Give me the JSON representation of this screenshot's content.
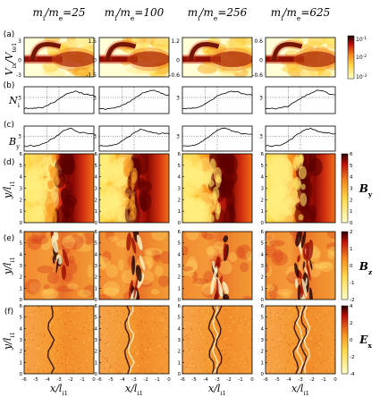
{
  "columns": [
    {
      "prefix": "m",
      "sub1": "i",
      "sep": "/m",
      "sub2": "e",
      "value": "=25"
    },
    {
      "prefix": "m",
      "sub1": "i",
      "sep": "/m",
      "sub2": "e",
      "value": "=100"
    },
    {
      "prefix": "m",
      "sub1": "i",
      "sep": "/m",
      "sub2": "e",
      "value": "=256"
    },
    {
      "prefix": "m",
      "sub1": "i",
      "sep": "/m",
      "sub2": "e",
      "value": "=625"
    }
  ],
  "row_labels": {
    "a": "(a)",
    "b": "(b)",
    "c": "(c)",
    "d": "(d)",
    "e": "(e)",
    "f": "(f)"
  },
  "axis": {
    "a_ylabel_main": "V",
    "a_ylabel_sub": "ix",
    "a_ylabel_sep": "/V",
    "a_ylabel_sub2": "te1",
    "b_ylabel_main": "N",
    "b_ylabel_sub": "i",
    "c_ylabel_main": "B",
    "c_ylabel_sub": "y",
    "map_ylabel_main": "y/l",
    "map_ylabel_sub": "i1",
    "xlabel_main": "x/l",
    "xlabel_sub": "i1"
  },
  "field_labels": {
    "d_main": "B",
    "d_sub": "y",
    "e_main": "B",
    "e_sub": "z",
    "f_main": "E",
    "f_sub": "x"
  },
  "colorbar_a": [
    "10",
    "-1",
    "10",
    "-2",
    "10",
    "-3"
  ],
  "colorbar_d": [
    "6",
    "5",
    "4",
    "3",
    "2",
    "1",
    "0"
  ],
  "colorbar_e": [
    "2",
    "1",
    "0",
    "-1",
    "-2"
  ],
  "colorbar_f": [
    "4",
    "2",
    "0",
    "-2",
    "-4"
  ],
  "a_yticks": [
    [
      "3",
      "0",
      "-3"
    ],
    [
      "1.5",
      "0",
      "-1.5"
    ],
    [
      "1.2",
      "0",
      "-0.6"
    ],
    [
      "0.6",
      "0",
      "-0.6"
    ]
  ],
  "bc_ytick": "3",
  "map_yticks": [
    "6",
    "5",
    "4",
    "3",
    "2",
    "1",
    "0"
  ],
  "xticks": [
    "-6",
    "-5",
    "-4",
    "-3",
    "-2",
    "-1",
    "0"
  ],
  "chart_data": [
    {
      "type": "line",
      "panel": "(b)",
      "series": [
        {
          "values": [
            0.9,
            0.9,
            0.95,
            1.0,
            1.1,
            1.3,
            1.6,
            2.0,
            2.5,
            3.0,
            3.5,
            3.8,
            4.0,
            4.1,
            3.9,
            3.6,
            3.4,
            3.3
          ]
        },
        {
          "values": [
            0.9,
            0.9,
            0.9,
            1.0,
            1.1,
            1.3,
            1.7,
            2.1,
            2.6,
            3.1,
            3.5,
            3.9,
            4.1,
            4.3,
            4.1,
            3.8,
            3.5,
            3.4
          ]
        },
        {
          "values": [
            0.9,
            0.9,
            0.95,
            1.0,
            1.2,
            1.5,
            2.0,
            2.5,
            3.0,
            3.4,
            3.7,
            4.0,
            4.2,
            4.1,
            3.9,
            3.7,
            3.5,
            3.4
          ]
        },
        {
          "values": [
            0.9,
            0.9,
            0.95,
            1.0,
            1.1,
            1.3,
            1.6,
            2.1,
            2.6,
            3.1,
            3.5,
            3.8,
            4.1,
            4.3,
            4.2,
            3.9,
            3.6,
            3.5
          ]
        }
      ]
    },
    {
      "type": "line",
      "panel": "(c)",
      "series": [
        {
          "values": [
            1.0,
            1.0,
            1.05,
            1.1,
            1.3,
            1.6,
            2.0,
            2.5,
            3.1,
            3.7,
            4.2,
            4.5,
            4.3,
            3.9,
            3.7,
            3.6,
            3.5,
            3.5
          ]
        },
        {
          "values": [
            1.0,
            1.0,
            1.0,
            1.1,
            1.3,
            1.7,
            2.2,
            2.8,
            3.4,
            3.9,
            4.4,
            4.2,
            3.9,
            3.7,
            3.6,
            3.5,
            3.5,
            3.4
          ]
        },
        {
          "values": [
            1.0,
            1.0,
            1.05,
            1.2,
            1.5,
            2.0,
            2.6,
            3.2,
            3.8,
            4.3,
            4.6,
            4.4,
            4.0,
            3.8,
            3.6,
            3.5,
            3.4,
            3.4
          ]
        },
        {
          "values": [
            1.0,
            1.0,
            1.05,
            1.1,
            1.3,
            1.7,
            2.3,
            2.9,
            3.5,
            4.0,
            4.4,
            4.6,
            4.3,
            3.9,
            3.7,
            3.6,
            3.5,
            3.5
          ]
        }
      ]
    }
  ]
}
